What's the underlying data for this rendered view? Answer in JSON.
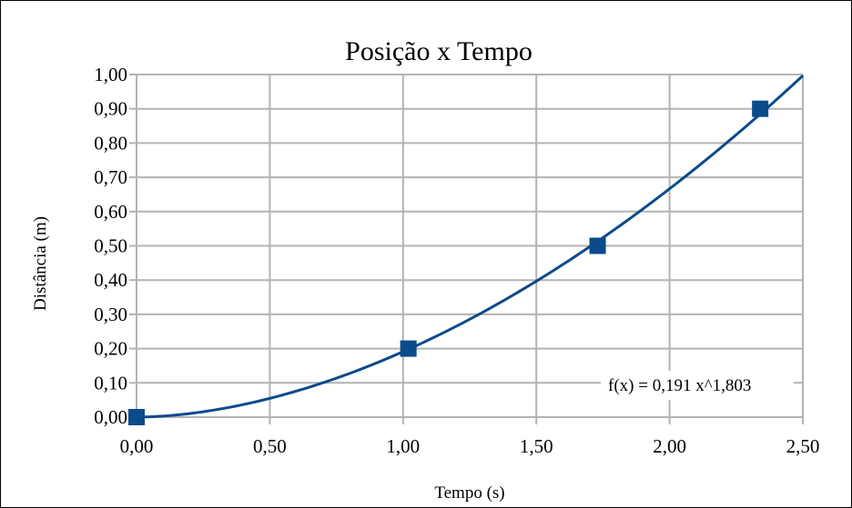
{
  "chart_data": {
    "type": "scatter",
    "title": "Posição x Tempo",
    "xlabel": "Tempo (s)",
    "ylabel": "Distância (m)",
    "xlim": [
      0,
      2.5
    ],
    "ylim": [
      0,
      1
    ],
    "x_ticks": [
      "0,00",
      "0,50",
      "1,00",
      "1,50",
      "2,00",
      "2,50"
    ],
    "y_ticks": [
      "0,00",
      "0,10",
      "0,20",
      "0,30",
      "0,40",
      "0,50",
      "0,60",
      "0,70",
      "0,80",
      "0,90",
      "1,00"
    ],
    "grid": true,
    "series": [
      {
        "x": [
          0.0,
          1.02,
          1.73,
          2.34
        ],
        "y": [
          0.0,
          0.2,
          0.5,
          0.9
        ],
        "marker": "square",
        "color": "#0b4a8b"
      }
    ],
    "trendline": {
      "type": "power",
      "coefficient": 0.191,
      "exponent": 1.803,
      "label": "f(x) = 0,191 x^1,803",
      "color": "#0b4a8b"
    }
  }
}
